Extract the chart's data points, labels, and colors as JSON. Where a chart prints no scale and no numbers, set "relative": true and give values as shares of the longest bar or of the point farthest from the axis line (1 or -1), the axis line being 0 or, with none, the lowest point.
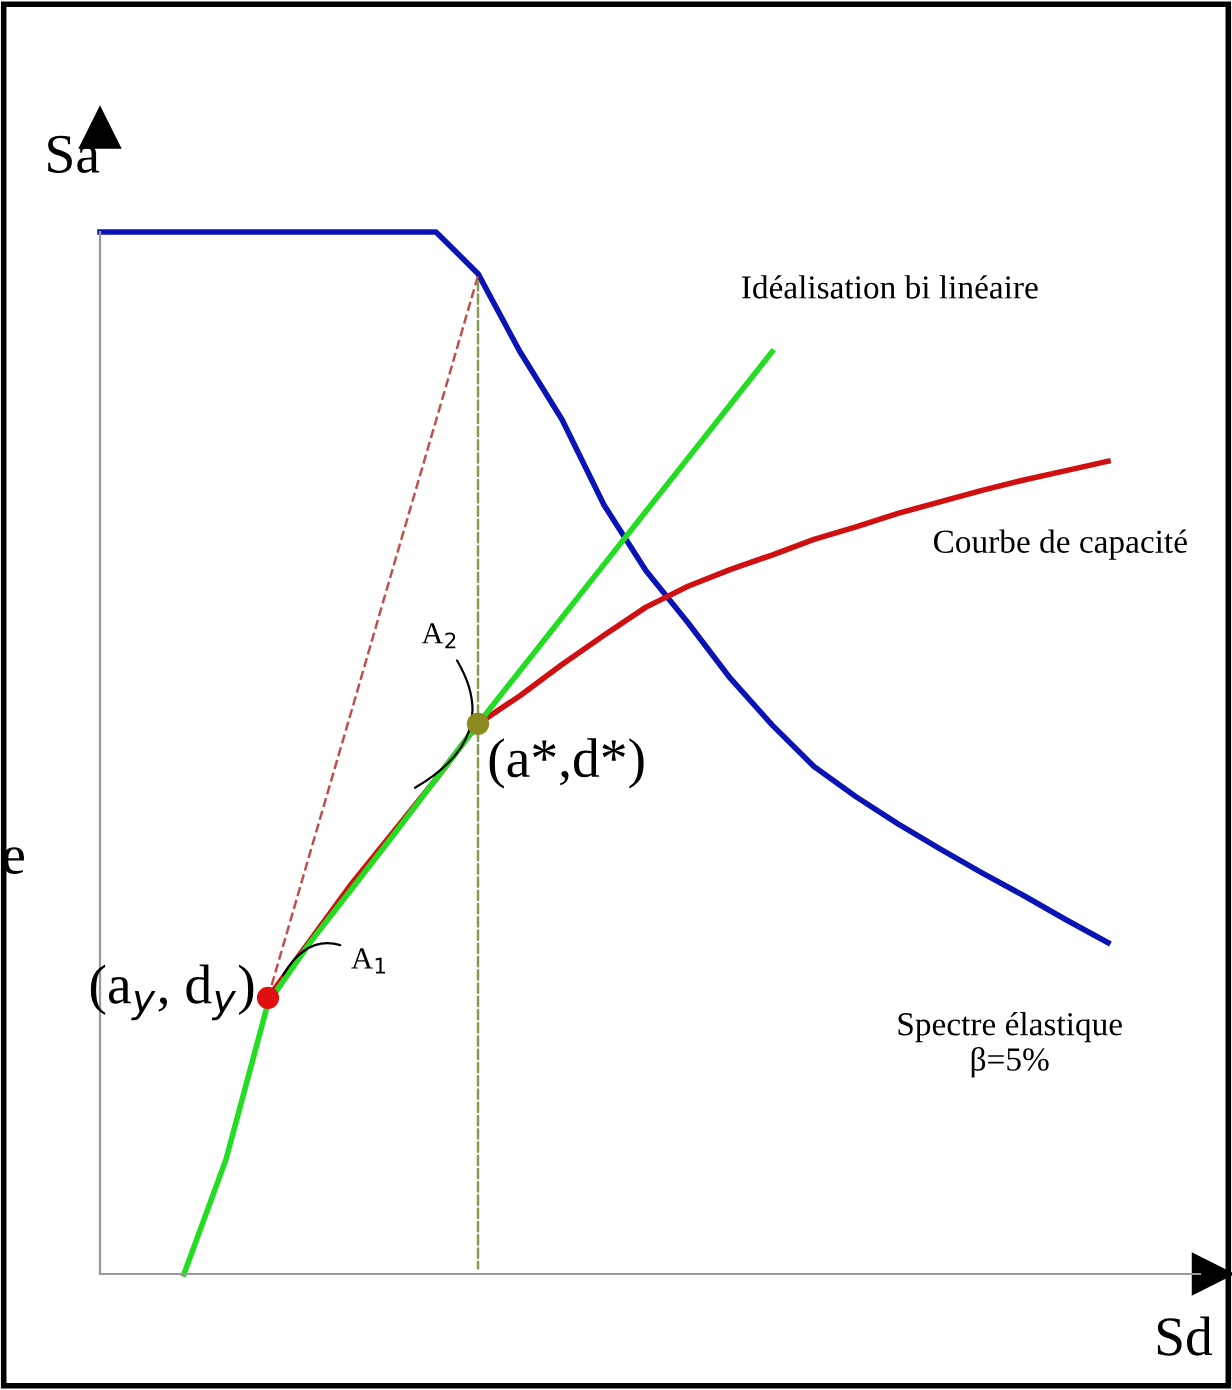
{
  "chart_data": {
    "type": "line",
    "relative": true,
    "xlabel": "Sd",
    "ylabel": "Sa",
    "grid": false,
    "categories": [
      null,
      null,
      null,
      null,
      null,
      null,
      null,
      null,
      null,
      null,
      null,
      null,
      null,
      null,
      null,
      null,
      null,
      null,
      null,
      null,
      null,
      null,
      null,
      null,
      null
    ],
    "series": [
      {
        "name": "Spectre élastique\nβ=5%",
        "color": "#0a14b4",
        "values": [
          1,
          1,
          1,
          1,
          1,
          1,
          1,
          1,
          1,
          0.96,
          0.885,
          0.82,
          0.738,
          0.675,
          0.625,
          0.572,
          0.527,
          0.487,
          0.458,
          0.432,
          0.408,
          0.385,
          0.363,
          0.34,
          0.318
        ]
      },
      {
        "name": "Courbe de capacité",
        "color": "#d01010",
        "values": [
          null,
          null,
          null,
          null,
          0.265,
          0.32,
          0.375,
          0.425,
          0.475,
          0.528,
          0.555,
          0.585,
          0.613,
          0.64,
          0.66,
          0.676,
          0.69,
          0.705,
          0.717,
          0.73,
          0.741,
          0.752,
          0.762,
          0.771,
          0.78
        ]
      },
      {
        "name": "Idéalisation bi linéaire",
        "color": "#22dd22",
        "values": [
          null,
          null,
          0,
          0.11,
          0.26,
          0.318,
          0.37,
          0.422,
          0.475,
          0.528,
          0.579,
          0.63,
          0.681,
          0.732,
          0.783,
          0.834,
          0.885,
          null,
          null,
          null,
          null,
          null,
          null,
          null,
          null
        ]
      },
      {
        "color": "#c05050",
        "line_style": "dashed",
        "values": [
          null,
          null,
          null,
          null,
          0.265,
          0.404,
          0.542,
          0.681,
          0.819,
          0.958,
          null,
          null,
          null,
          null,
          null,
          null,
          null,
          null,
          null,
          null,
          null,
          null,
          null,
          null,
          null
        ]
      },
      {
        "marker": "circle",
        "color": "#e01010",
        "values": [
          null,
          null,
          null,
          null,
          0.265,
          null,
          null,
          null,
          null,
          null,
          null,
          null,
          null,
          null,
          null,
          null,
          null,
          null,
          null,
          null,
          null,
          null,
          null,
          null,
          null
        ]
      },
      {
        "marker": "circle",
        "color": "#8a8a20",
        "values": [
          null,
          null,
          null,
          null,
          null,
          null,
          null,
          null,
          null,
          0.528,
          null,
          null,
          null,
          null,
          null,
          null,
          null,
          null,
          null,
          null,
          null,
          null,
          null,
          null,
          null
        ]
      }
    ],
    "annotations": [
      "(a$_{y}$, d$_{y}$)",
      "(a*,d*)",
      "A$_{1}$",
      "A$_{2}$",
      "e"
    ]
  }
}
